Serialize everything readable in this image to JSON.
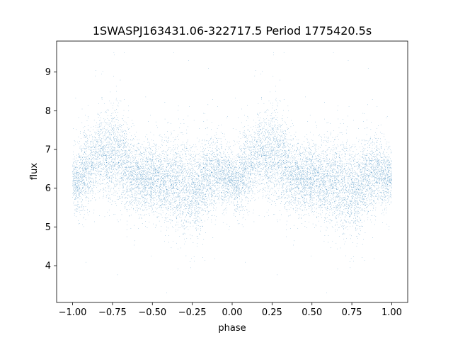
{
  "chart_data": {
    "type": "scatter",
    "title": "1SWASPJ163431.06-322717.5 Period 1775420.5s",
    "xlabel": "phase",
    "ylabel": "flux",
    "xlim": [
      -1.1,
      1.1
    ],
    "ylim": [
      3.05,
      9.8
    ],
    "xticks": [
      -1.0,
      -0.75,
      -0.5,
      -0.25,
      0.0,
      0.25,
      0.5,
      0.75,
      1.0
    ],
    "xtick_labels": [
      "−1.00",
      "−0.75",
      "−0.50",
      "−0.25",
      "0.00",
      "0.25",
      "0.50",
      "0.75",
      "1.00"
    ],
    "yticks": [
      4,
      5,
      6,
      7,
      8,
      9
    ],
    "ytick_labels": [
      "4",
      "5",
      "6",
      "7",
      "8",
      "9"
    ],
    "grid": false,
    "series": [
      {
        "color": "#1f77b4",
        "marker_size": 0.5,
        "folded": true,
        "fold_period_phase": 1.0,
        "approx_points_per_cycle": 7000,
        "profile_phase": [
          0.0,
          0.03,
          0.07,
          0.12,
          0.18,
          0.23,
          0.28,
          0.33,
          0.37,
          0.43,
          0.5,
          0.56,
          0.62,
          0.67,
          0.72,
          0.78,
          0.85,
          0.9,
          0.95,
          1.0
        ],
        "profile_mean_flux": [
          6.3,
          6.1,
          6.5,
          6.6,
          6.9,
          6.8,
          6.9,
          6.6,
          6.3,
          6.2,
          6.3,
          6.2,
          6.2,
          6.1,
          6.0,
          5.9,
          6.3,
          6.4,
          6.3,
          6.3
        ],
        "profile_spread": [
          0.35,
          0.4,
          0.5,
          0.45,
          0.5,
          0.55,
          0.6,
          0.5,
          0.45,
          0.4,
          0.45,
          0.5,
          0.55,
          0.6,
          0.6,
          0.55,
          0.5,
          0.45,
          0.4,
          0.35
        ]
      }
    ]
  }
}
